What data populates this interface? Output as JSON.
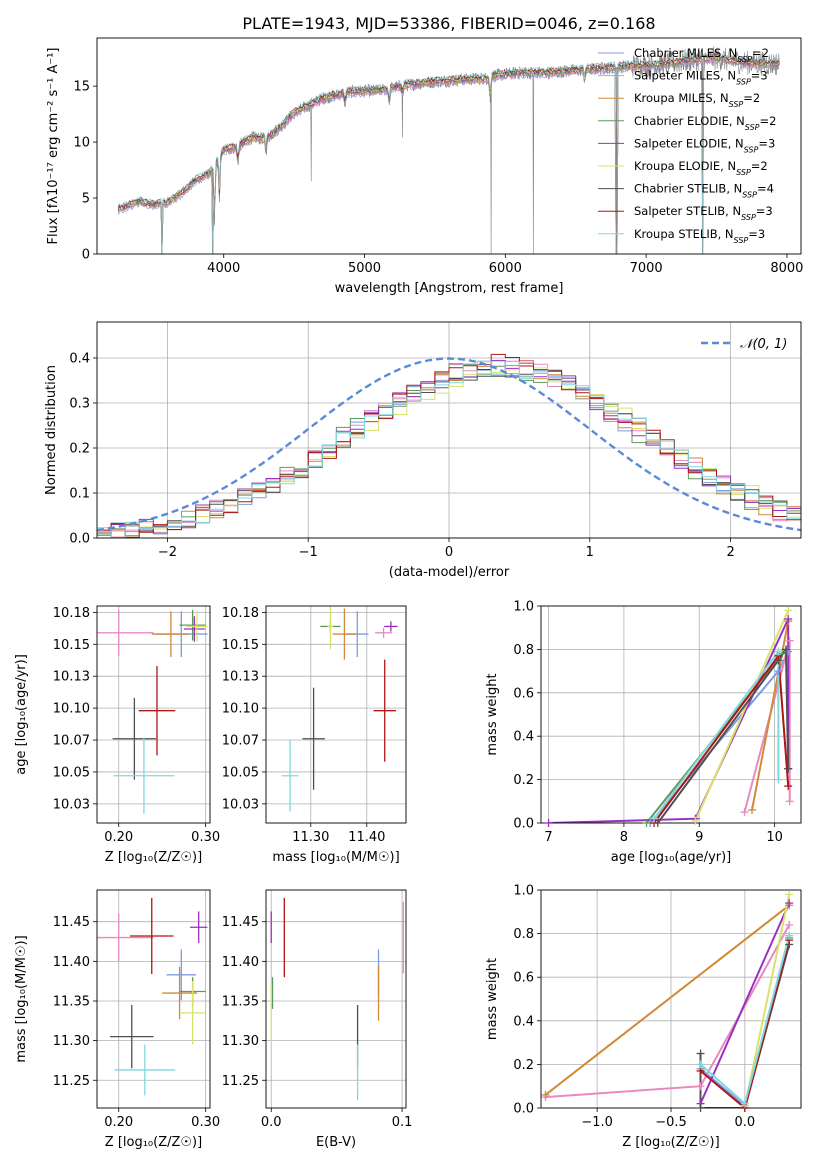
{
  "figure_title": "PLATE=1943, MJD=53386, FIBERID=0046, z=0.168",
  "models": [
    {
      "label": "Chabrier MILES, N",
      "sub": "SSP",
      "suffix": "=2",
      "color": "#7b9be8"
    },
    {
      "label": "Salpeter MILES, N",
      "sub": "SSP",
      "suffix": "=3",
      "color": "#e889c0"
    },
    {
      "label": "Kroupa MILES, N",
      "sub": "SSP",
      "suffix": "=2",
      "color": "#d08a3a"
    },
    {
      "label": "Chabrier ELODIE, N",
      "sub": "SSP",
      "suffix": "=2",
      "color": "#5c9a5c"
    },
    {
      "label": "Salpeter ELODIE, N",
      "sub": "SSP",
      "suffix": "=3",
      "color": "#9b30c0"
    },
    {
      "label": "Kroupa ELODIE, N",
      "sub": "SSP",
      "suffix": "=2",
      "color": "#d7e36a"
    },
    {
      "label": "Chabrier STELIB, N",
      "sub": "SSP",
      "suffix": "=4",
      "color": "#505050"
    },
    {
      "label": "Salpeter STELIB, N",
      "sub": "SSP",
      "suffix": "=3",
      "color": "#b01515"
    },
    {
      "label": "Kroupa STELIB, N",
      "sub": "SSP",
      "suffix": "=3",
      "color": "#7fd8e0"
    }
  ],
  "chart_data": [
    {
      "id": "spectrum",
      "type": "line",
      "xlabel": "wavelength [Angstrom, rest frame]",
      "ylabel": "Flux [fλ10⁻¹⁷ erg cm⁻² s⁻¹ A⁻¹]",
      "xlim": [
        3100,
        8100
      ],
      "ylim": [
        0,
        19.3
      ],
      "xticks": [
        4000,
        5000,
        6000,
        7000,
        8000
      ],
      "yticks": [
        0,
        5,
        10,
        15
      ],
      "data_color": "#808080",
      "continuum": [
        [
          3250,
          4.0
        ],
        [
          3400,
          4.7
        ],
        [
          3500,
          4.4
        ],
        [
          3600,
          4.6
        ],
        [
          3700,
          5.4
        ],
        [
          3800,
          6.6
        ],
        [
          3900,
          7.2
        ],
        [
          4000,
          9.3
        ],
        [
          4100,
          9.6
        ],
        [
          4200,
          10.4
        ],
        [
          4300,
          10.3
        ],
        [
          4400,
          11.3
        ],
        [
          4500,
          12.6
        ],
        [
          4700,
          13.9
        ],
        [
          4900,
          14.5
        ],
        [
          5100,
          14.6
        ],
        [
          5300,
          15.1
        ],
        [
          5500,
          15.4
        ],
        [
          5700,
          15.6
        ],
        [
          5890,
          15.7
        ],
        [
          5900,
          15.9
        ],
        [
          6100,
          16.2
        ],
        [
          6300,
          16.2
        ],
        [
          6500,
          16.4
        ],
        [
          6700,
          16.6
        ],
        [
          6900,
          16.8
        ],
        [
          7100,
          16.9
        ],
        [
          7300,
          17.3
        ],
        [
          7500,
          17.5
        ],
        [
          7700,
          17.1
        ],
        [
          7900,
          17.0
        ]
      ],
      "absorption": [
        [
          3934,
          5.5
        ],
        [
          3969,
          4.0
        ],
        [
          4101,
          1.5
        ],
        [
          4300,
          1.2
        ],
        [
          4861,
          1.0
        ],
        [
          5175,
          1.5
        ],
        [
          5270,
          0.8
        ],
        [
          5893,
          2.0
        ],
        [
          6563,
          1.0
        ]
      ],
      "outliers": [
        [
          3560,
          0
        ],
        [
          3920,
          0
        ],
        [
          4620,
          6.5
        ],
        [
          5270,
          10.4
        ],
        [
          5900,
          0
        ],
        [
          6200,
          0
        ],
        [
          6790,
          0
        ],
        [
          7400,
          0
        ]
      ],
      "model_dropouts": [
        [
          3560,
          0
        ],
        [
          3920,
          0
        ],
        [
          6790,
          0
        ],
        [
          7400,
          0
        ]
      ]
    },
    {
      "id": "residual-histogram",
      "type": "histogram",
      "xlabel": "(data-model)/error",
      "ylabel": "Normed distribution",
      "xlim": [
        -2.5,
        2.5
      ],
      "ylim": [
        0,
        0.48
      ],
      "xticks": [
        -2,
        -1,
        0,
        1,
        2
      ],
      "yticks": [
        0.0,
        0.1,
        0.2,
        0.3,
        0.4
      ],
      "bin_width": 0.1,
      "reference_curve": {
        "name": "𝒩(0, 1)",
        "mean": 0,
        "sigma": 1,
        "color": "#5b8ad6"
      },
      "legend": "top-right",
      "model_centre_offset": 0.35,
      "model_width": 1.05
    },
    {
      "id": "age-vs-Z",
      "type": "scatter",
      "xlabel": "Z [log₁₀(Z/Z☉)]",
      "ylabel": "age  [log₁₀(age/yr)]",
      "xlim": [
        0.175,
        0.305
      ],
      "ylim": [
        10.01,
        10.18
      ],
      "xticks": [
        0.2,
        0.3
      ],
      "yticks": [
        10.025,
        10.05,
        10.075,
        10.1,
        10.125,
        10.15,
        10.175
      ],
      "points": [
        {
          "model": 0,
          "x": 0.272,
          "y": 10.158,
          "xe": 0.03,
          "ye": 0.018
        },
        {
          "model": 1,
          "x": 0.2,
          "y": 10.159,
          "xe": 0.04,
          "ye": 0.018
        },
        {
          "model": 2,
          "x": 0.26,
          "y": 10.158,
          "xe": 0.022,
          "ye": 0.018
        },
        {
          "model": 3,
          "x": 0.285,
          "y": 10.165,
          "xe": 0.015,
          "ye": 0.012
        },
        {
          "model": 4,
          "x": 0.287,
          "y": 10.162,
          "xe": 0.012,
          "ye": 0.01
        },
        {
          "model": 5,
          "x": 0.29,
          "y": 10.164,
          "xe": 0.012,
          "ye": 0.012
        },
        {
          "model": 6,
          "x": 0.218,
          "y": 10.076,
          "xe": 0.025,
          "ye": 0.032
        },
        {
          "model": 7,
          "x": 0.244,
          "y": 10.098,
          "xe": 0.021,
          "ye": 0.035
        },
        {
          "model": 8,
          "x": 0.229,
          "y": 10.047,
          "xe": 0.035,
          "ye": 0.03
        }
      ]
    },
    {
      "id": "age-vs-mass",
      "type": "scatter",
      "xlabel": "mass [log₁₀(M/M☉)]",
      "ylabel": "",
      "xlim": [
        11.22,
        11.47
      ],
      "ylim": [
        10.01,
        10.18
      ],
      "xticks": [
        11.3,
        11.4
      ],
      "yticks": [
        10.025,
        10.05,
        10.075,
        10.1,
        10.125,
        10.15,
        10.175
      ],
      "points": [
        {
          "model": 0,
          "x": 11.383,
          "y": 10.158,
          "xe": 0.02,
          "ye": 0.018
        },
        {
          "model": 1,
          "x": 11.43,
          "y": 10.159,
          "xe": 0.015,
          "ye": 0.004
        },
        {
          "model": 2,
          "x": 11.36,
          "y": 10.158,
          "xe": 0.021,
          "ye": 0.02
        },
        {
          "model": 3,
          "x": 11.335,
          "y": 10.164,
          "xe": 0.018,
          "ye": 0.004
        },
        {
          "model": 4,
          "x": 11.443,
          "y": 10.164,
          "xe": 0.012,
          "ye": 0.004
        },
        {
          "model": 5,
          "x": 11.335,
          "y": 10.164,
          "xe": 0.005,
          "ye": 0.018
        },
        {
          "model": 6,
          "x": 11.305,
          "y": 10.076,
          "xe": 0.02,
          "ye": 0.04
        },
        {
          "model": 7,
          "x": 11.432,
          "y": 10.098,
          "xe": 0.02,
          "ye": 0.04
        },
        {
          "model": 8,
          "x": 11.263,
          "y": 10.047,
          "xe": 0.015,
          "ye": 0.028
        }
      ]
    },
    {
      "id": "mass-weight-vs-age",
      "type": "line",
      "xlabel": "age  [log₁₀(age/yr)]",
      "ylabel": "mass weight",
      "xlim": [
        6.9,
        10.35
      ],
      "ylim": [
        0,
        1.0
      ],
      "xticks": [
        7,
        8,
        9,
        10
      ],
      "yticks": [
        0.0,
        0.2,
        0.4,
        0.6,
        0.8,
        1.0
      ],
      "series": [
        {
          "model": 0,
          "points": [
            [
              8.35,
              0.0
            ],
            [
              10.05,
              0.7
            ],
            [
              10.18,
              0.79
            ]
          ]
        },
        {
          "model": 1,
          "points": [
            [
              10.2,
              0.1
            ],
            [
              10.2,
              0.84
            ],
            [
              9.6,
              0.05
            ]
          ]
        },
        {
          "model": 2,
          "points": [
            [
              9.7,
              0.06
            ],
            [
              10.18,
              0.93
            ]
          ]
        },
        {
          "model": 3,
          "points": [
            [
              8.3,
              0.0
            ],
            [
              10.1,
              0.78
            ]
          ]
        },
        {
          "model": 4,
          "points": [
            [
              7.0,
              0.0
            ],
            [
              8.95,
              0.02
            ],
            [
              10.18,
              0.94
            ],
            [
              10.18,
              0.25
            ]
          ]
        },
        {
          "model": 5,
          "points": [
            [
              8.95,
              0.01
            ],
            [
              10.18,
              0.98
            ]
          ]
        },
        {
          "model": 6,
          "points": [
            [
              8.45,
              0.0
            ],
            [
              10.05,
              0.75
            ],
            [
              10.15,
              0.8
            ],
            [
              10.18,
              0.25
            ]
          ]
        },
        {
          "model": 7,
          "points": [
            [
              8.4,
              0.0
            ],
            [
              10.05,
              0.77
            ],
            [
              10.18,
              0.17
            ]
          ]
        },
        {
          "model": 8,
          "points": [
            [
              8.4,
              0.02
            ],
            [
              10.05,
              0.79
            ],
            [
              10.05,
              0.2
            ]
          ]
        }
      ]
    },
    {
      "id": "mass-vs-Z",
      "type": "scatter",
      "xlabel": "Z [log₁₀(Z/Z☉)]",
      "ylabel": "mass [log₁₀(M/M☉)]",
      "xlim": [
        0.175,
        0.305
      ],
      "ylim": [
        11.215,
        11.49
      ],
      "xticks": [
        0.2,
        0.3
      ],
      "yticks": [
        11.25,
        11.3,
        11.35,
        11.4,
        11.45
      ],
      "points": [
        {
          "model": 0,
          "x": 0.272,
          "y": 11.383,
          "xe": 0.017,
          "ye": 0.032
        },
        {
          "model": 1,
          "x": 0.2,
          "y": 11.43,
          "xe": 0.04,
          "ye": 0.03
        },
        {
          "model": 2,
          "x": 0.27,
          "y": 11.36,
          "xe": 0.02,
          "ye": 0.033
        },
        {
          "model": 3,
          "x": 0.285,
          "y": 11.362,
          "xe": 0.015,
          "ye": 0.018
        },
        {
          "model": 4,
          "x": 0.292,
          "y": 11.443,
          "xe": 0.01,
          "ye": 0.02
        },
        {
          "model": 5,
          "x": 0.285,
          "y": 11.335,
          "xe": 0.015,
          "ye": 0.04
        },
        {
          "model": 6,
          "x": 0.215,
          "y": 11.305,
          "xe": 0.025,
          "ye": 0.04
        },
        {
          "model": 7,
          "x": 0.238,
          "y": 11.432,
          "xe": 0.025,
          "ye": 0.048
        },
        {
          "model": 8,
          "x": 0.23,
          "y": 11.263,
          "xe": 0.035,
          "ye": 0.032
        }
      ]
    },
    {
      "id": "mass-vs-EBV",
      "type": "scatter",
      "xlabel": "E(B-V)",
      "ylabel": "",
      "xlim": [
        -0.004,
        0.103
      ],
      "ylim": [
        11.215,
        11.49
      ],
      "xticks": [
        0.0,
        0.1
      ],
      "yticks": [
        11.25,
        11.3,
        11.35,
        11.4,
        11.45
      ],
      "points": [
        {
          "model": 0,
          "x": 0.082,
          "y": 11.385,
          "xe": 0,
          "ye": 0.03
        },
        {
          "model": 1,
          "x": 0.101,
          "y": 11.43,
          "xe": 0,
          "ye": 0.045
        },
        {
          "model": 2,
          "x": 0.082,
          "y": 11.36,
          "xe": 0,
          "ye": 0.035
        },
        {
          "model": 3,
          "x": 0.001,
          "y": 11.36,
          "xe": 0,
          "ye": 0.02
        },
        {
          "model": 4,
          "x": 0.0,
          "y": 11.443,
          "xe": 0,
          "ye": 0.02
        },
        {
          "model": 5,
          "x": 0.0,
          "y": 11.335,
          "xe": 0,
          "ye": 0.035
        },
        {
          "model": 6,
          "x": 0.066,
          "y": 11.305,
          "xe": 0,
          "ye": 0.04
        },
        {
          "model": 7,
          "x": 0.01,
          "y": 11.43,
          "xe": 0,
          "ye": 0.05
        },
        {
          "model": 8,
          "x": 0.066,
          "y": 11.26,
          "xe": 0,
          "ye": 0.035
        }
      ]
    },
    {
      "id": "mass-weight-vs-Z",
      "type": "line",
      "xlabel": "Z [log₁₀(Z/Z☉)]",
      "ylabel": "mass weight",
      "xlim": [
        -1.38,
        0.38
      ],
      "ylim": [
        0,
        1.0
      ],
      "xticks": [
        -1.0,
        -0.5,
        0.0
      ],
      "yticks": [
        0.0,
        0.2,
        0.4,
        0.6,
        0.8,
        1.0
      ],
      "series": [
        {
          "model": 0,
          "points": [
            [
              -0.3,
              0.18
            ],
            [
              0.0,
              0.01
            ],
            [
              0.3,
              0.79
            ]
          ]
        },
        {
          "model": 1,
          "points": [
            [
              -1.35,
              0.05
            ],
            [
              -0.3,
              0.1
            ],
            [
              0.3,
              0.84
            ]
          ]
        },
        {
          "model": 2,
          "points": [
            [
              -1.35,
              0.06
            ],
            [
              0.3,
              0.93
            ]
          ]
        },
        {
          "model": 3,
          "points": [
            [
              0.0,
              0.01
            ],
            [
              0.3,
              0.78
            ]
          ]
        },
        {
          "model": 4,
          "points": [
            [
              -0.3,
              0.02
            ],
            [
              0.3,
              0.94
            ]
          ]
        },
        {
          "model": 5,
          "points": [
            [
              0.0,
              0.01
            ],
            [
              0.3,
              0.98
            ]
          ]
        },
        {
          "model": 6,
          "points": [
            [
              -0.3,
              0.25
            ],
            [
              -0.3,
              0.0
            ],
            [
              0.0,
              0.0
            ],
            [
              0.3,
              0.75
            ]
          ]
        },
        {
          "model": 7,
          "points": [
            [
              -0.3,
              0.17
            ],
            [
              0.0,
              0.0
            ],
            [
              0.3,
              0.77
            ]
          ]
        },
        {
          "model": 8,
          "points": [
            [
              -0.3,
              0.2
            ],
            [
              0.0,
              0.02
            ],
            [
              0.3,
              0.79
            ]
          ]
        }
      ]
    }
  ]
}
